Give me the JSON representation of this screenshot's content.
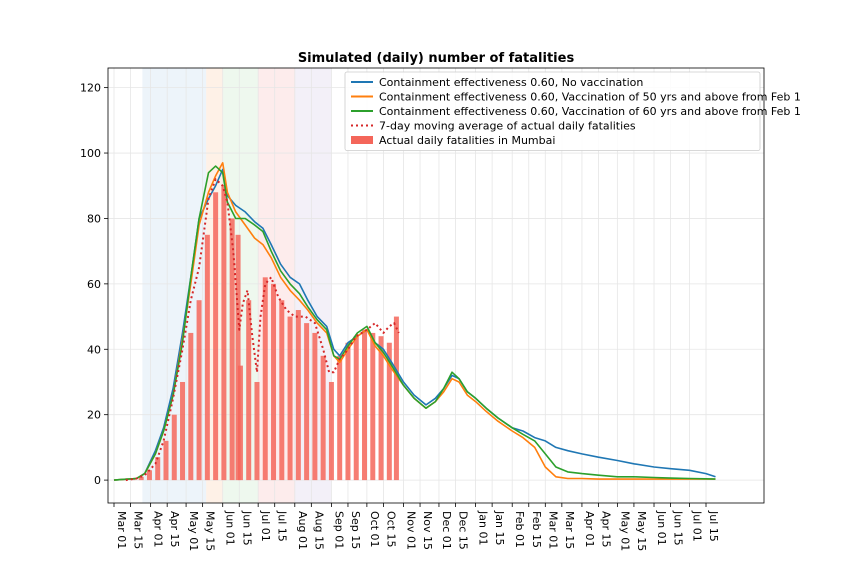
{
  "chart_data": {
    "type": "line",
    "title": "Simulated (daily) number of fatalities",
    "xlabel": "",
    "ylabel": "",
    "x_axis": "date",
    "x_start": "2020-03-01",
    "ylim": [
      -7,
      126
    ],
    "yticks": [
      0,
      20,
      40,
      60,
      80,
      100,
      120
    ],
    "xticks": [
      "Mar 01",
      "Mar 15",
      "Apr 01",
      "Apr 15",
      "May 01",
      "May 15",
      "Jun 01",
      "Jun 15",
      "Jul 01",
      "Jul 15",
      "Aug 01",
      "Aug 15",
      "Sep 01",
      "Sep 15",
      "Oct 01",
      "Oct 15",
      "Nov 01",
      "Nov 15",
      "Dec 01",
      "Dec 15",
      "Jan 01",
      "Jan 15",
      "Feb 01",
      "Feb 15",
      "Mar 01",
      "Mar 15",
      "Apr 01",
      "Apr 15",
      "May 01",
      "May 15",
      "Jun 01",
      "Jun 15",
      "Jul 01",
      "Jul 15"
    ],
    "grid": true,
    "legend_position": "top-right",
    "shaded_periods": [
      {
        "start": "2020-03-25",
        "end": "2020-05-18",
        "color": "#dbe9f6"
      },
      {
        "start": "2020-05-18",
        "end": "2020-06-01",
        "color": "#fde3cf"
      },
      {
        "start": "2020-06-01",
        "end": "2020-07-01",
        "color": "#ddf1dd"
      },
      {
        "start": "2020-07-01",
        "end": "2020-08-01",
        "color": "#fbdada"
      },
      {
        "start": "2020-08-01",
        "end": "2020-09-01",
        "color": "#e7e1f1"
      }
    ],
    "series": [
      {
        "name": "Containment effectiveness 0.60, No vaccination",
        "type": "line",
        "color": "#1f77b4",
        "x": [
          "2020-03-01",
          "2020-03-20",
          "2020-03-27",
          "2020-04-05",
          "2020-04-12",
          "2020-04-20",
          "2020-04-28",
          "2020-05-05",
          "2020-05-12",
          "2020-05-20",
          "2020-05-26",
          "2020-06-01",
          "2020-06-05",
          "2020-06-12",
          "2020-06-20",
          "2020-06-28",
          "2020-07-05",
          "2020-07-12",
          "2020-07-20",
          "2020-07-28",
          "2020-08-05",
          "2020-08-12",
          "2020-08-20",
          "2020-08-28",
          "2020-09-03",
          "2020-09-08",
          "2020-09-15",
          "2020-09-23",
          "2020-10-01",
          "2020-10-08",
          "2020-10-15",
          "2020-10-22",
          "2020-11-01",
          "2020-11-10",
          "2020-11-20",
          "2020-11-28",
          "2020-12-05",
          "2020-12-12",
          "2020-12-18",
          "2020-12-25",
          "2021-01-01",
          "2021-01-10",
          "2021-01-20",
          "2021-02-01",
          "2021-02-10",
          "2021-02-20",
          "2021-03-01",
          "2021-03-10",
          "2021-03-20",
          "2021-04-01",
          "2021-04-15",
          "2021-05-01",
          "2021-05-15",
          "2021-06-01",
          "2021-06-15",
          "2021-07-01",
          "2021-07-15",
          "2021-07-23"
        ],
        "y": [
          0,
          0.5,
          2,
          9,
          16,
          28,
          45,
          62,
          80,
          86,
          90,
          95,
          87,
          84,
          82,
          79,
          77,
          72,
          66,
          62,
          60,
          55,
          50,
          47,
          40,
          38,
          42,
          44,
          46,
          42,
          40,
          36,
          30,
          26,
          23,
          25,
          28,
          32,
          31,
          27,
          25,
          22,
          19,
          16,
          15,
          13,
          12,
          10,
          9,
          8,
          7,
          6,
          5,
          4,
          3.5,
          3,
          2,
          1
        ]
      },
      {
        "name": "Containment effectiveness 0.60, Vaccination of 50 yrs and above from Feb 1",
        "type": "line",
        "color": "#ff7f0e",
        "x": [
          "2020-03-01",
          "2020-03-20",
          "2020-03-27",
          "2020-04-05",
          "2020-04-12",
          "2020-04-20",
          "2020-04-28",
          "2020-05-05",
          "2020-05-12",
          "2020-05-20",
          "2020-05-26",
          "2020-06-01",
          "2020-06-05",
          "2020-06-12",
          "2020-06-20",
          "2020-06-28",
          "2020-07-05",
          "2020-07-12",
          "2020-07-20",
          "2020-07-28",
          "2020-08-05",
          "2020-08-12",
          "2020-08-20",
          "2020-08-28",
          "2020-09-03",
          "2020-09-08",
          "2020-09-15",
          "2020-09-23",
          "2020-10-01",
          "2020-10-08",
          "2020-10-15",
          "2020-10-22",
          "2020-11-01",
          "2020-11-10",
          "2020-11-20",
          "2020-11-28",
          "2020-12-05",
          "2020-12-12",
          "2020-12-18",
          "2020-12-25",
          "2021-01-01",
          "2021-01-10",
          "2021-01-20",
          "2021-02-01",
          "2021-02-10",
          "2021-02-20",
          "2021-03-01",
          "2021-03-10",
          "2021-03-20",
          "2021-04-01",
          "2021-04-15",
          "2021-05-01",
          "2021-05-15",
          "2021-06-01",
          "2021-06-15",
          "2021-07-01",
          "2021-07-15",
          "2021-07-23"
        ],
        "y": [
          0,
          0.5,
          2,
          8,
          15,
          26,
          43,
          60,
          78,
          88,
          93,
          97,
          88,
          82,
          78,
          74,
          72,
          68,
          62,
          58,
          55,
          52,
          48,
          45,
          38,
          36,
          40,
          44,
          46,
          41,
          38,
          34,
          29,
          25,
          22,
          24,
          27,
          31,
          30,
          26,
          24,
          21,
          18,
          15,
          13,
          10,
          4,
          1,
          0.5,
          0.5,
          0.3,
          0.3,
          0.3,
          0.3,
          0.3,
          0.3,
          0.3,
          0.3
        ]
      },
      {
        "name": "Containment effectiveness 0.60, Vaccination of 60 yrs and above from Feb 1",
        "type": "line",
        "color": "#2ca02c",
        "x": [
          "2020-03-01",
          "2020-03-20",
          "2020-03-27",
          "2020-04-05",
          "2020-04-12",
          "2020-04-20",
          "2020-04-28",
          "2020-05-05",
          "2020-05-12",
          "2020-05-20",
          "2020-05-26",
          "2020-06-01",
          "2020-06-05",
          "2020-06-12",
          "2020-06-20",
          "2020-06-28",
          "2020-07-05",
          "2020-07-12",
          "2020-07-20",
          "2020-07-28",
          "2020-08-05",
          "2020-08-12",
          "2020-08-20",
          "2020-08-28",
          "2020-09-03",
          "2020-09-08",
          "2020-09-15",
          "2020-09-23",
          "2020-10-01",
          "2020-10-08",
          "2020-10-15",
          "2020-10-22",
          "2020-11-01",
          "2020-11-10",
          "2020-11-20",
          "2020-11-28",
          "2020-12-05",
          "2020-12-12",
          "2020-12-18",
          "2020-12-25",
          "2021-01-01",
          "2021-01-10",
          "2021-01-20",
          "2021-02-01",
          "2021-02-10",
          "2021-02-20",
          "2021-03-01",
          "2021-03-10",
          "2021-03-20",
          "2021-04-01",
          "2021-04-15",
          "2021-05-01",
          "2021-05-15",
          "2021-06-01",
          "2021-06-15",
          "2021-07-01",
          "2021-07-15",
          "2021-07-23"
        ],
        "y": [
          0,
          0.5,
          2,
          8,
          15,
          26,
          42,
          62,
          80,
          94,
          96,
          94,
          85,
          80,
          80,
          78,
          76,
          70,
          64,
          60,
          57,
          53,
          49,
          46,
          38,
          37,
          41,
          45,
          47,
          42,
          39,
          35,
          29,
          25,
          22,
          24,
          28,
          33,
          31,
          27,
          25,
          22,
          19,
          16,
          14,
          12,
          8,
          4,
          2.5,
          2,
          1.5,
          1,
          1,
          0.8,
          0.6,
          0.5,
          0.4,
          0.3
        ]
      },
      {
        "name": "7-day moving average of actual daily fatalities",
        "type": "line",
        "style": "dotted",
        "color": "#d62728",
        "x": [
          "2020-03-11",
          "2020-03-20",
          "2020-03-27",
          "2020-04-05",
          "2020-04-12",
          "2020-04-20",
          "2020-04-28",
          "2020-05-05",
          "2020-05-12",
          "2020-05-20",
          "2020-05-26",
          "2020-06-01",
          "2020-06-05",
          "2020-06-10",
          "2020-06-15",
          "2020-06-18",
          "2020-06-22",
          "2020-06-26",
          "2020-06-30",
          "2020-07-03",
          "2020-07-07",
          "2020-07-12",
          "2020-07-18",
          "2020-07-25",
          "2020-08-01",
          "2020-08-10",
          "2020-08-18",
          "2020-08-25",
          "2020-08-30",
          "2020-09-03",
          "2020-09-08",
          "2020-09-15",
          "2020-09-22",
          "2020-10-01",
          "2020-10-08",
          "2020-10-15",
          "2020-10-20",
          "2020-10-24",
          "2020-10-28"
        ],
        "y": [
          0,
          0.5,
          1.5,
          5,
          12,
          25,
          40,
          55,
          65,
          86,
          92,
          90,
          85,
          70,
          46,
          54,
          58,
          44,
          33,
          50,
          60,
          62,
          56,
          52,
          50,
          50,
          48,
          40,
          33,
          33,
          37,
          40,
          44,
          46,
          48,
          45,
          47,
          48,
          45
        ]
      },
      {
        "name": "Actual daily fatalities in Mumbai",
        "type": "bar",
        "color": "#f4665a",
        "x": [
          "2020-03-17",
          "2020-03-24",
          "2020-03-31",
          "2020-04-07",
          "2020-04-14",
          "2020-04-21",
          "2020-04-28",
          "2020-05-05",
          "2020-05-12",
          "2020-05-19",
          "2020-05-26",
          "2020-06-02",
          "2020-06-09",
          "2020-06-14",
          "2020-06-16",
          "2020-06-23",
          "2020-06-30",
          "2020-07-07",
          "2020-07-14",
          "2020-07-21",
          "2020-07-28",
          "2020-08-04",
          "2020-08-11",
          "2020-08-18",
          "2020-08-25",
          "2020-09-01",
          "2020-09-08",
          "2020-09-15",
          "2020-09-22",
          "2020-09-29",
          "2020-10-06",
          "2020-10-13",
          "2020-10-20",
          "2020-10-26"
        ],
        "y": [
          0.5,
          1,
          3,
          7,
          12,
          20,
          30,
          45,
          55,
          75,
          88,
          90,
          80,
          75,
          35,
          55,
          30,
          62,
          60,
          55,
          50,
          52,
          48,
          45,
          38,
          30,
          38,
          42,
          44,
          46,
          45,
          44,
          42,
          50
        ]
      }
    ]
  }
}
